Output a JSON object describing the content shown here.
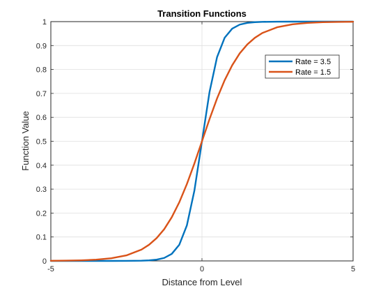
{
  "chart_data": {
    "type": "line",
    "title": "Transition Functions",
    "xlabel": "Distance from Level",
    "ylabel": "Function Value",
    "xlim": [
      -5,
      5
    ],
    "ylim": [
      0,
      1
    ],
    "x_ticks": [
      -5,
      0,
      5
    ],
    "y_ticks": [
      0,
      0.1,
      0.2,
      0.3,
      0.4,
      0.5,
      0.6,
      0.7,
      0.8,
      0.9,
      1
    ],
    "x_tick_labels": [
      "-5",
      "0",
      "5"
    ],
    "y_tick_labels": [
      "0",
      "0.1",
      "0.2",
      "0.3",
      "0.4",
      "0.5",
      "0.6",
      "0.7",
      "0.8",
      "0.9",
      "1"
    ],
    "grid": true,
    "legend_position": "top-right",
    "x": [
      -5,
      -4.5,
      -4,
      -3.5,
      -3,
      -2.5,
      -2,
      -1.75,
      -1.5,
      -1.25,
      -1,
      -0.75,
      -0.5,
      -0.25,
      0,
      0.25,
      0.5,
      0.75,
      1,
      1.25,
      1.5,
      1.75,
      2,
      2.5,
      3,
      3.5,
      4,
      4.5,
      5
    ],
    "series": [
      {
        "name": "Rate = 3.5",
        "color": "#0072BD",
        "values": [
          0.0,
          0.0,
          0.0,
          0.0,
          0.0,
          0.0002,
          0.0009,
          0.0022,
          0.0052,
          0.0124,
          0.0293,
          0.0675,
          0.148,
          0.2942,
          0.5,
          0.7058,
          0.852,
          0.9325,
          0.9707,
          0.9876,
          0.9948,
          0.9978,
          0.9991,
          0.9998,
          1.0,
          1.0,
          1.0,
          1.0,
          1.0
        ]
      },
      {
        "name": "Rate = 1.5",
        "color": "#D95319",
        "values": [
          0.0006,
          0.0012,
          0.0025,
          0.0052,
          0.011,
          0.023,
          0.0474,
          0.0676,
          0.0953,
          0.1325,
          0.1824,
          0.2451,
          0.3208,
          0.4073,
          0.5,
          0.5927,
          0.6792,
          0.7549,
          0.8176,
          0.8675,
          0.9047,
          0.9324,
          0.9526,
          0.977,
          0.989,
          0.9948,
          0.9975,
          0.9988,
          0.9994
        ]
      }
    ]
  }
}
